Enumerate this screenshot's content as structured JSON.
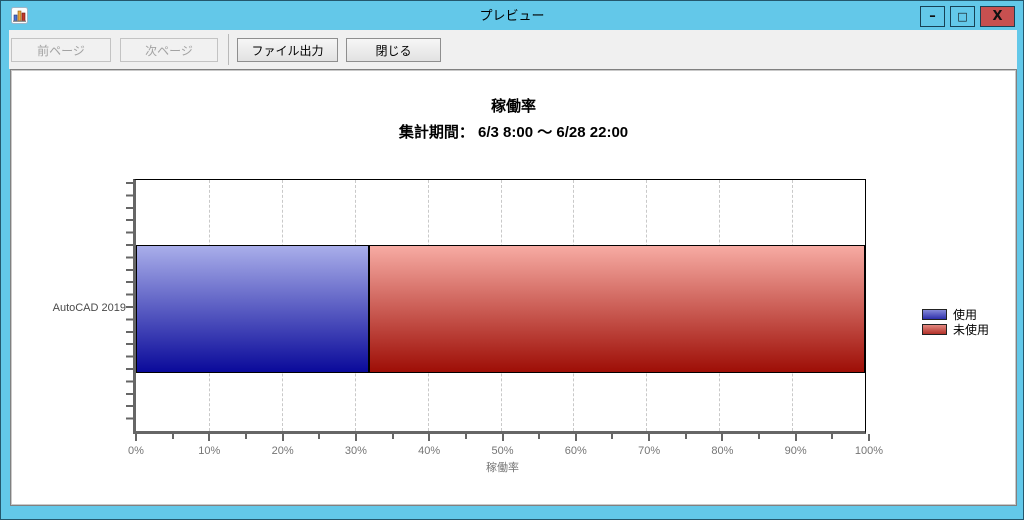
{
  "window": {
    "title": "プレビュー",
    "controls": {
      "minimize": "–",
      "maximize": "□",
      "close": "X"
    }
  },
  "toolbar": {
    "prev_button": "前ページ",
    "next_button": "次ページ",
    "export_button": "ファイル出力",
    "close_button": "閉じる"
  },
  "chart_data": {
    "type": "bar",
    "orientation": "horizontal",
    "stacked": true,
    "title": "稼働率",
    "subtitle": "集計期間： 6/3 8:00 ～ 6/28 22:00",
    "categories": [
      "AutoCAD 2019"
    ],
    "series": [
      {
        "name": "使用",
        "values": [
          32
        ],
        "color_top": "#a9aeea",
        "color_bottom": "#0a0a9a"
      },
      {
        "name": "未使用",
        "values": [
          68
        ],
        "color_top": "#f7aba3",
        "color_bottom": "#9e0e06"
      }
    ],
    "xlabel": "稼働率",
    "xlim": [
      0,
      100
    ],
    "x_ticks": [
      "0%",
      "10%",
      "20%",
      "30%",
      "40%",
      "50%",
      "60%",
      "70%",
      "80%",
      "90%",
      "100%"
    ],
    "minor_tick_step": 5,
    "grid": "vertical-dashed",
    "legend_position": "right"
  },
  "colors": {
    "titlebar": "#63c8e9",
    "close_button": "#c75050",
    "toolbar_bg": "#f0f0f0",
    "axis": "#666666",
    "tick_label": "#757575",
    "gridline": "#c9c9c9"
  }
}
